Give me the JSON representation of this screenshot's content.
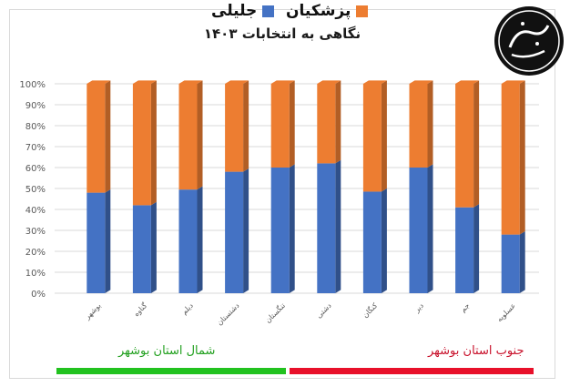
{
  "chart_data": {
    "type": "bar",
    "stacked": "percent",
    "title": "نگاهی به انتخابات ۱۴۰۳",
    "categories": [
      "بوشهر",
      "گناوه",
      "دیلم",
      "دشتستان",
      "تنگستان",
      "دشتی",
      "کنگان",
      "دیر",
      "جم",
      "عسلویه"
    ],
    "series": [
      {
        "name": "جلیلی",
        "color": "#4472C4",
        "values": [
          48,
          42,
          49.5,
          58,
          60,
          62,
          48.5,
          60,
          41,
          28
        ]
      },
      {
        "name": "پزشکیان",
        "color": "#ED7D31",
        "values": [
          52,
          58,
          50.5,
          42,
          40,
          38,
          51.5,
          40,
          59,
          72
        ]
      }
    ],
    "yticks": [
      "0%",
      "10%",
      "20%",
      "30%",
      "40%",
      "50%",
      "60%",
      "70%",
      "80%",
      "90%",
      "100%"
    ],
    "ylim": [
      0,
      100
    ],
    "grid": true,
    "legend_position": "bottom"
  },
  "regions": {
    "north_label": "شمال استان بوشهر",
    "north_color": "#22C21F",
    "south_label": "جنوب استان بوشهر",
    "south_color": "#E8102A"
  },
  "logo": {
    "text": "جنوب نما بوشهر"
  }
}
